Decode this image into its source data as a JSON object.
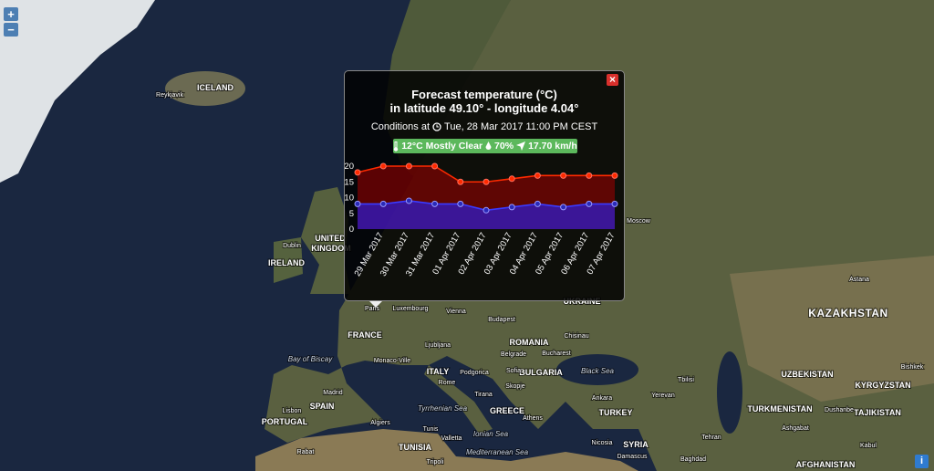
{
  "zoom": {
    "in": "+",
    "out": "−"
  },
  "info": "i",
  "map": {
    "labels": [
      "ICELAND",
      "Reykjavik",
      "UNITED",
      "KINGDOM",
      "IRELAND",
      "Dublin",
      "FRANCE",
      "Paris",
      "Luxembourg",
      "Bay of Biscay",
      "SPAIN",
      "Madrid",
      "PORTUGAL",
      "Lisbon",
      "ITALY",
      "Rome",
      "Algiers",
      "Tunis",
      "TUNISIA",
      "Tyrrhenian Sea",
      "Ionian Sea",
      "Mediterranean Sea",
      "GREECE",
      "Athens",
      "TURKEY",
      "Ankara",
      "Black Sea",
      "ROMANIA",
      "Bucharest",
      "BULGARIA",
      "Sofia",
      "Budapest",
      "Vienna",
      "Belgrade",
      "UKRAINE",
      "Chisinau",
      "Moscow",
      "KAZAKHSTAN",
      "Astana",
      "UZBEKISTAN",
      "TURKMENISTAN",
      "KYRGYZSTAN",
      "TAJIKISTAN",
      "Bishkek",
      "Tehran",
      "Baghdad",
      "Damascus",
      "SYRIA",
      "Tbilisi",
      "Yerevan",
      "Ashgabat",
      "Dushanbe",
      "Kabul",
      "AFGHANISTAN",
      "Tripoli",
      "Rabat",
      "Monaco-Ville",
      "Podgorica",
      "Skopje",
      "Tirana",
      "Valletta",
      "Nicosia",
      "Ljubljana"
    ]
  },
  "popup": {
    "close": "×",
    "title": [
      "Forecast temperature (°C)",
      "in latitude 49.10° - longitude 4.04°"
    ],
    "conditions_label": "Conditions at",
    "conditions_time": "Tue, 28 Mar 2017 11:00 PM CEST",
    "badge": {
      "summary": "12°C Mostly Clear",
      "humidity": "70%",
      "wind": "17.70 km/h"
    }
  },
  "chart_data": {
    "type": "area",
    "categories": [
      null,
      "29 Mar 2017",
      "30 Mar 2017",
      "31 Mar 2017",
      "01 Apr 2017",
      "02 Apr 2017",
      "03 Apr 2017",
      "04 Apr 2017",
      "05 Apr 2017",
      "06 Apr 2017",
      "07 Apr 2017"
    ],
    "series": [
      {
        "color": "#ff2a00",
        "values": [
          18,
          20,
          20,
          20,
          15,
          15,
          16,
          17,
          17,
          17,
          17
        ]
      },
      {
        "color": "#3a3aff",
        "values": [
          8,
          8,
          9,
          8,
          8,
          6,
          7,
          8,
          7,
          8,
          8
        ]
      }
    ],
    "ylim": [
      0,
      20
    ],
    "yticks": [
      0,
      5,
      10,
      15,
      20
    ],
    "grid": false
  }
}
